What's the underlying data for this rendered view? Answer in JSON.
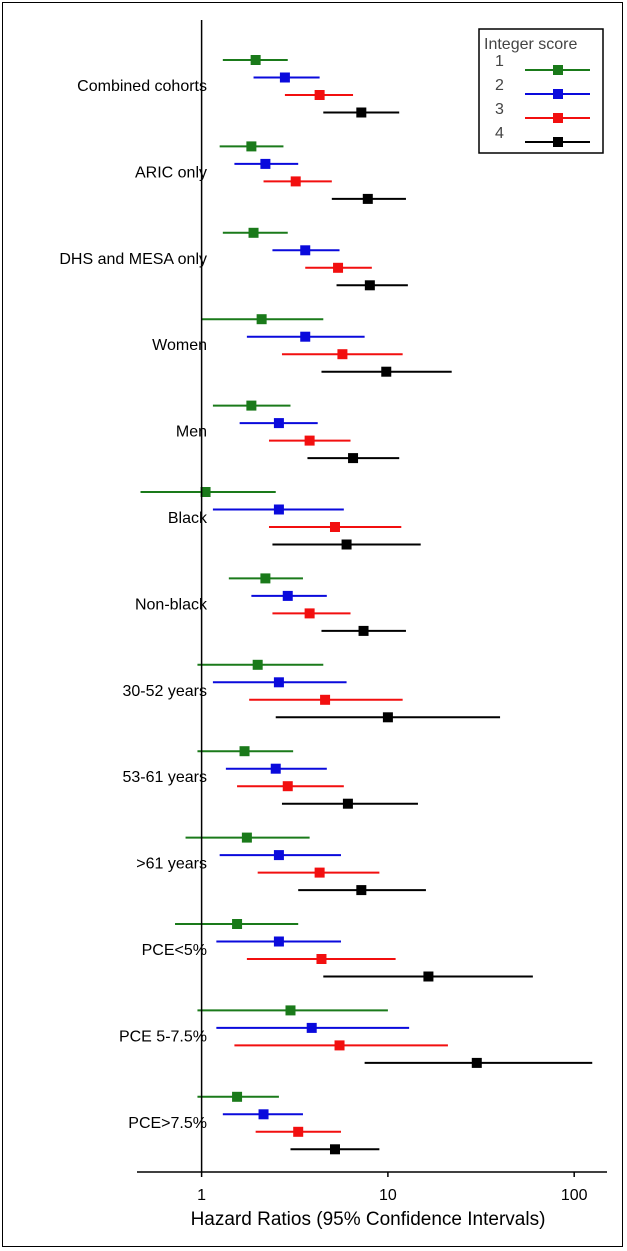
{
  "chart_data": {
    "type": "forest",
    "xlabel": "Hazard Ratios (95% Confidence Intervals)",
    "x_scale": "log",
    "xlim": [
      0.45,
      150
    ],
    "x_ticks": [
      1,
      10,
      100
    ],
    "x_tick_labels": [
      "1",
      "10",
      "100"
    ],
    "reference_line": 1,
    "legend": {
      "title": "Integer score",
      "position": "top-right",
      "entries": [
        {
          "label": "1",
          "color": "#1a7a1a"
        },
        {
          "label": "2",
          "color": "#0a0adc"
        },
        {
          "label": "3",
          "color": "#f20f0f"
        },
        {
          "label": "4",
          "color": "#000000"
        }
      ]
    },
    "series_colors": [
      "#1a7a1a",
      "#0a0adc",
      "#f20f0f",
      "#000000"
    ],
    "groups": [
      {
        "label": "Combined cohorts",
        "estimates": [
          {
            "score": "1",
            "hr": 1.95,
            "lo": 1.3,
            "hi": 2.9
          },
          {
            "score": "2",
            "hr": 2.8,
            "lo": 1.9,
            "hi": 4.3
          },
          {
            "score": "3",
            "hr": 4.3,
            "lo": 2.8,
            "hi": 6.5
          },
          {
            "score": "4",
            "hr": 7.2,
            "lo": 4.5,
            "hi": 11.5
          }
        ]
      },
      {
        "label": "ARIC only",
        "estimates": [
          {
            "score": "1",
            "hr": 1.85,
            "lo": 1.25,
            "hi": 2.75
          },
          {
            "score": "2",
            "hr": 2.2,
            "lo": 1.5,
            "hi": 3.3
          },
          {
            "score": "3",
            "hr": 3.2,
            "lo": 2.15,
            "hi": 5.0
          },
          {
            "score": "4",
            "hr": 7.8,
            "lo": 5.0,
            "hi": 12.5
          }
        ]
      },
      {
        "label": "DHS and MESA only",
        "estimates": [
          {
            "score": "1",
            "hr": 1.9,
            "lo": 1.3,
            "hi": 2.9
          },
          {
            "score": "2",
            "hr": 3.6,
            "lo": 2.4,
            "hi": 5.5
          },
          {
            "score": "3",
            "hr": 5.4,
            "lo": 3.6,
            "hi": 8.2
          },
          {
            "score": "4",
            "hr": 8.0,
            "lo": 5.3,
            "hi": 12.8
          }
        ]
      },
      {
        "label": "Women",
        "estimates": [
          {
            "score": "1",
            "hr": 2.1,
            "lo": 1.0,
            "hi": 4.5
          },
          {
            "score": "2",
            "hr": 3.6,
            "lo": 1.75,
            "hi": 7.5
          },
          {
            "score": "3",
            "hr": 5.7,
            "lo": 2.7,
            "hi": 12.0
          },
          {
            "score": "4",
            "hr": 9.8,
            "lo": 4.4,
            "hi": 22.0
          }
        ]
      },
      {
        "label": "Men",
        "estimates": [
          {
            "score": "1",
            "hr": 1.85,
            "lo": 1.15,
            "hi": 3.0
          },
          {
            "score": "2",
            "hr": 2.6,
            "lo": 1.6,
            "hi": 4.2
          },
          {
            "score": "3",
            "hr": 3.8,
            "lo": 2.3,
            "hi": 6.3
          },
          {
            "score": "4",
            "hr": 6.5,
            "lo": 3.7,
            "hi": 11.5
          }
        ]
      },
      {
        "label": "Black",
        "estimates": [
          {
            "score": "1",
            "hr": 1.05,
            "lo": 0.47,
            "hi": 2.5
          },
          {
            "score": "2",
            "hr": 2.6,
            "lo": 1.15,
            "hi": 5.8
          },
          {
            "score": "3",
            "hr": 5.2,
            "lo": 2.3,
            "hi": 11.8
          },
          {
            "score": "4",
            "hr": 6.0,
            "lo": 2.4,
            "hi": 15.0
          }
        ]
      },
      {
        "label": "Non-black",
        "estimates": [
          {
            "score": "1",
            "hr": 2.2,
            "lo": 1.4,
            "hi": 3.5
          },
          {
            "score": "2",
            "hr": 2.9,
            "lo": 1.85,
            "hi": 4.7
          },
          {
            "score": "3",
            "hr": 3.8,
            "lo": 2.4,
            "hi": 6.3
          },
          {
            "score": "4",
            "hr": 7.4,
            "lo": 4.4,
            "hi": 12.5
          }
        ]
      },
      {
        "label": "30-52 years",
        "estimates": [
          {
            "score": "1",
            "hr": 2.0,
            "lo": 0.95,
            "hi": 4.5
          },
          {
            "score": "2",
            "hr": 2.6,
            "lo": 1.15,
            "hi": 6.0
          },
          {
            "score": "3",
            "hr": 4.6,
            "lo": 1.8,
            "hi": 12.0
          },
          {
            "score": "4",
            "hr": 10.0,
            "lo": 2.5,
            "hi": 40.0
          }
        ]
      },
      {
        "label": "53-61 years",
        "estimates": [
          {
            "score": "1",
            "hr": 1.7,
            "lo": 0.95,
            "hi": 3.1
          },
          {
            "score": "2",
            "hr": 2.5,
            "lo": 1.35,
            "hi": 4.7
          },
          {
            "score": "3",
            "hr": 2.9,
            "lo": 1.55,
            "hi": 5.8
          },
          {
            "score": "4",
            "hr": 6.1,
            "lo": 2.7,
            "hi": 14.5
          }
        ]
      },
      {
        "label": ">61 years",
        "estimates": [
          {
            "score": "1",
            "hr": 1.75,
            "lo": 0.82,
            "hi": 3.8
          },
          {
            "score": "2",
            "hr": 2.6,
            "lo": 1.25,
            "hi": 5.6
          },
          {
            "score": "3",
            "hr": 4.3,
            "lo": 2.0,
            "hi": 9.0
          },
          {
            "score": "4",
            "hr": 7.2,
            "lo": 3.3,
            "hi": 16.0
          }
        ]
      },
      {
        "label": "PCE<5%",
        "estimates": [
          {
            "score": "1",
            "hr": 1.55,
            "lo": 0.72,
            "hi": 3.3
          },
          {
            "score": "2",
            "hr": 2.6,
            "lo": 1.2,
            "hi": 5.6
          },
          {
            "score": "3",
            "hr": 4.4,
            "lo": 1.75,
            "hi": 11.0
          },
          {
            "score": "4",
            "hr": 16.5,
            "lo": 4.5,
            "hi": 60.0
          }
        ]
      },
      {
        "label": "PCE 5-7.5%",
        "estimates": [
          {
            "score": "1",
            "hr": 3.0,
            "lo": 0.95,
            "hi": 10.0
          },
          {
            "score": "2",
            "hr": 3.9,
            "lo": 1.2,
            "hi": 13.0
          },
          {
            "score": "3",
            "hr": 5.5,
            "lo": 1.5,
            "hi": 21.0
          },
          {
            "score": "4",
            "hr": 30.0,
            "lo": 7.5,
            "hi": 125.0
          }
        ]
      },
      {
        "label": "PCE>7.5%",
        "estimates": [
          {
            "score": "1",
            "hr": 1.55,
            "lo": 0.95,
            "hi": 2.6
          },
          {
            "score": "2",
            "hr": 2.15,
            "lo": 1.3,
            "hi": 3.5
          },
          {
            "score": "3",
            "hr": 3.3,
            "lo": 1.95,
            "hi": 5.6
          },
          {
            "score": "4",
            "hr": 5.2,
            "lo": 3.0,
            "hi": 9.0
          }
        ]
      }
    ]
  }
}
